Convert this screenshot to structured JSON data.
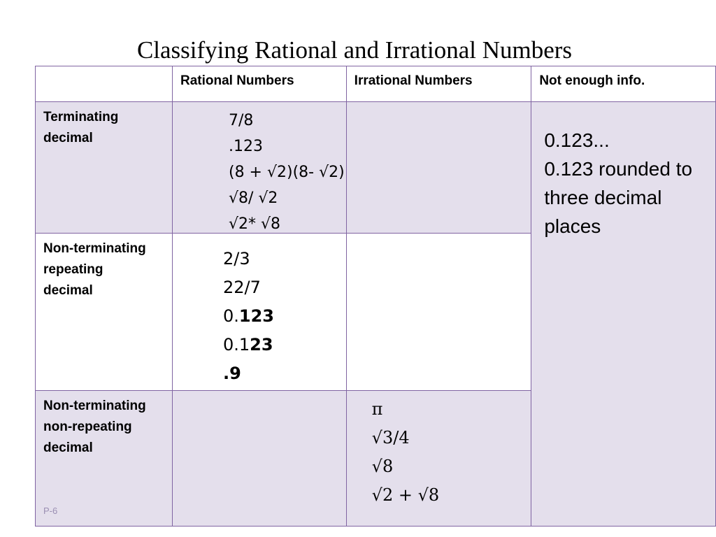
{
  "title": "Classifying Rational and Irrational Numbers",
  "headers": [
    "",
    "Rational Numbers",
    "Irrational Numbers",
    "Not enough info."
  ],
  "rows": [
    {
      "label": "Terminating decimal",
      "rational": [
        "7/8",
        ".123",
        "(8 + √2)(8- √2)",
        "√8/ √2",
        "√2* √8"
      ],
      "irrational": []
    },
    {
      "label": "Non-terminating repeating decimal",
      "rational": [
        "2/3",
        "22/7",
        "0.123",
        "0.123",
        ".9"
      ],
      "irrational": []
    },
    {
      "label": "Non-terminating non-repeating decimal",
      "rational": [],
      "irrational": [
        "π",
        "√3/4",
        "√8",
        "√2 + √8"
      ]
    }
  ],
  "not_enough_info": [
    "0.123...",
    "0.123 rounded to three decimal places"
  ],
  "repeating_parts": {
    "r2_2": {
      "plain": "0.",
      "bold": "123"
    },
    "r2_3": {
      "plain": "0.1",
      "bold": "23"
    },
    "r2_4": {
      "plain": "",
      "bold": ".9"
    }
  },
  "slide_number": "P-6"
}
